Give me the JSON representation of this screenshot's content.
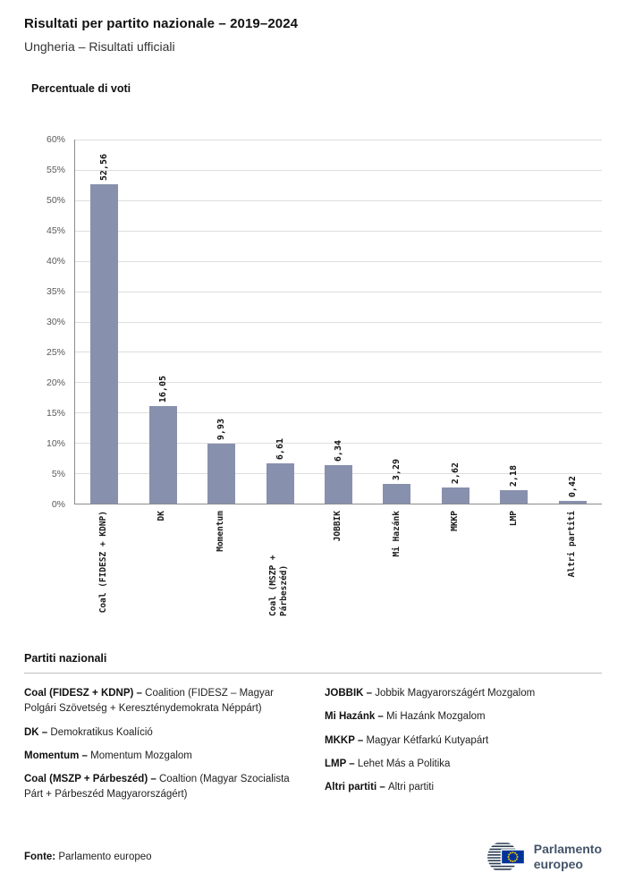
{
  "header": {
    "title": "Risultati per partito nazionale – 2019–2024",
    "subtitle": "Ungheria – Risultati ufficiali"
  },
  "chart_data": {
    "type": "bar",
    "title": "Percentuale di voti",
    "categories": [
      "Coal (FIDESZ + KDNP)",
      "DK",
      "Momentum",
      "Coal (MSZP + Párbeszéd)",
      "JOBBIK",
      "Mi Hazánk",
      "MKKP",
      "LMP",
      "Altri partiti"
    ],
    "values": [
      52.56,
      16.05,
      9.93,
      6.61,
      6.34,
      3.29,
      2.62,
      2.18,
      0.42
    ],
    "value_labels": [
      "52,56",
      "16,05",
      "9,93",
      "6,61",
      "6,34",
      "3,29",
      "2,62",
      "2,18",
      "0,42"
    ],
    "xlabel": "",
    "ylabel": "",
    "ylim": [
      0,
      60
    ],
    "ytick_step": 5,
    "ytick_labels": [
      "0%",
      "5%",
      "10%",
      "15%",
      "20%",
      "25%",
      "30%",
      "35%",
      "40%",
      "45%",
      "50%",
      "55%",
      "60%"
    ],
    "grid": true,
    "legend_position": "none",
    "bar_color": "#8791ad"
  },
  "legend": {
    "heading": "Partiti nazionali",
    "columns": [
      [
        {
          "name": "Coal (FIDESZ + KDNP) –",
          "desc": "Coalition (FIDESZ – Magyar Polgári Szövetség + Kereszténydemokrata Néppárt)"
        },
        {
          "name": "DK –",
          "desc": "Demokratikus Koalíció"
        },
        {
          "name": "Momentum –",
          "desc": "Momentum Mozgalom"
        },
        {
          "name": "Coal (MSZP + Párbeszéd) –",
          "desc": "Coaltion (Magyar Szocialista Párt + Párbeszéd Magyarországért)"
        }
      ],
      [
        {
          "name": "JOBBIK –",
          "desc": "Jobbik Magyarországért Mozgalom"
        },
        {
          "name": "Mi Hazánk –",
          "desc": "Mi Hazánk Mozgalom"
        },
        {
          "name": "MKKP –",
          "desc": "Magyar Kétfarkú Kutyapárt"
        },
        {
          "name": "LMP –",
          "desc": "Lehet Más a Politika"
        },
        {
          "name": "Altri partiti –",
          "desc": "Altri partiti"
        }
      ]
    ]
  },
  "footer": {
    "source_label": "Fonte:",
    "source_value": "Parlamento europeo",
    "logo_line1": "Parlamento",
    "logo_line2": "europeo"
  },
  "colors": {
    "bar": "#8791ad",
    "grid": "#dedede",
    "axis": "#8c8c8c",
    "eu_flag_blue": "#003399",
    "eu_star_yellow": "#ffcc00",
    "logo_text": "#44546a"
  }
}
